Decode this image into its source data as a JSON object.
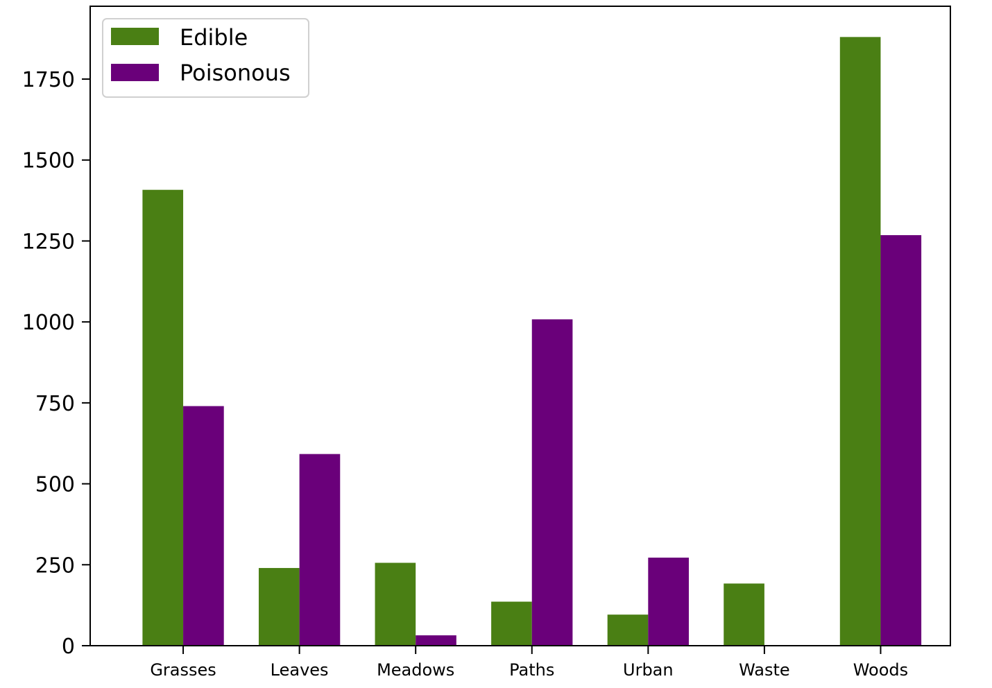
{
  "chart_data": {
    "type": "bar",
    "title": "",
    "xlabel": "",
    "ylabel": "",
    "categories": [
      "Grasses",
      "Leaves",
      "Meadows",
      "Paths",
      "Urban",
      "Waste",
      "Woods"
    ],
    "series": [
      {
        "name": "Edible",
        "color": "#4a7f14",
        "values": [
          1408,
          240,
          256,
          136,
          96,
          192,
          1880
        ]
      },
      {
        "name": "Poisonous",
        "color": "#6a007a",
        "values": [
          740,
          592,
          32,
          1008,
          272,
          0,
          1268
        ]
      }
    ],
    "ylim": [
      0,
      1975
    ],
    "yticks": [
      0,
      250,
      500,
      750,
      1000,
      1250,
      1500,
      1750
    ],
    "legend": "upper-left",
    "grid": false
  }
}
